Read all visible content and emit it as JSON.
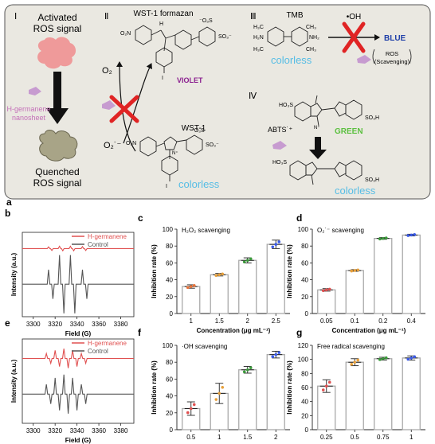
{
  "panel_a": {
    "letter": "a",
    "section1": {
      "roman": "Ⅰ",
      "line1": "Activated",
      "line2": "ROS signal",
      "label1": "H-germanene",
      "label2": "nanosheet",
      "out1": "Quenched",
      "out2": "ROS signal"
    },
    "section2": {
      "roman": "Ⅱ",
      "product": "WST-1 formazan",
      "violet": "VIOLET",
      "reagent": "WST-1",
      "colorless": "colorless",
      "o2": "O₂",
      "superoxide": "O₂˙⁻",
      "so3": "SO₃⁻",
      "oso3": "⁻O₃S",
      "no2": "O₂N",
      "iodo": "I",
      "n": "N",
      "nplus": "N⁺",
      "nh": "H"
    },
    "section3": {
      "roman": "Ⅲ",
      "tmb": "TMB",
      "oh": "•OH",
      "blue": "BLUE",
      "colorless": "colorless",
      "ros1": "ROS",
      "ros2": "(Scavenging)",
      "h3c": "H₃C",
      "ch3": "CH₃",
      "h2n": "H₂N",
      "nh2": "NH₂"
    },
    "section4": {
      "roman": "Ⅳ",
      "abts": "ABTS˙⁺",
      "green": "GREEN",
      "colorless": "colorless",
      "ho3s": "HO₃S",
      "so3h": "SO₃H",
      "n": "N",
      "s": "S",
      "nplus": "N⁺"
    }
  },
  "colors": {
    "panel_bg": "#eae8e1",
    "purple": "#c79bd0",
    "red": "#e02424",
    "violet": "#8b1f8f",
    "blue": "#1f3fa8",
    "green": "#5cc040",
    "colorless": "#56bde5",
    "hgerm": "#e05050",
    "control": "#555555"
  },
  "chart_data": [
    {
      "panel": "b",
      "type": "line",
      "xlabel": "Field (G)",
      "ylabel": "Intensity (a.u.)",
      "xticks": [
        "3300",
        "3320",
        "3340",
        "3360",
        "3380"
      ],
      "xlim": [
        3290,
        3392
      ],
      "series": [
        {
          "name": "H-germanene",
          "color": "#e05050",
          "offset": 0.8,
          "lines": [
            [
              3314,
              0.05
            ],
            [
              3317,
              -0.06
            ],
            [
              3324,
              0.07
            ],
            [
              3327,
              -0.07
            ],
            [
              3334,
              0.07
            ],
            [
              3337,
              -0.07
            ],
            [
              3345,
              0.06
            ],
            [
              3348,
              -0.06
            ]
          ]
        },
        {
          "name": "Control",
          "color": "#555555",
          "offset": -0.3,
          "lines": [
            [
              3314,
              0.45
            ],
            [
              3318,
              -0.45
            ],
            [
              3324,
              0.9
            ],
            [
              3328,
              -0.9
            ],
            [
              3334,
              0.9
            ],
            [
              3338,
              -0.9
            ],
            [
              3345,
              0.45
            ],
            [
              3349,
              -0.45
            ]
          ]
        }
      ],
      "legend": "top-right"
    },
    {
      "panel": "e",
      "type": "line",
      "xlabel": "Field (G)",
      "ylabel": "Intensity (a.u.)",
      "xticks": [
        "3300",
        "3320",
        "3340",
        "3360",
        "3380"
      ],
      "xlim": [
        3290,
        3392
      ],
      "series": [
        {
          "name": "H-germanene",
          "color": "#e05050",
          "offset": 0.7,
          "lines": [
            [
              3312,
              0.15
            ],
            [
              3316,
              -0.15
            ],
            [
              3320,
              0.25
            ],
            [
              3324,
              -0.25
            ],
            [
              3328,
              0.3
            ],
            [
              3332,
              -0.3
            ],
            [
              3336,
              0.25
            ],
            [
              3340,
              -0.25
            ],
            [
              3344,
              0.15
            ],
            [
              3348,
              -0.15
            ]
          ]
        },
        {
          "name": "Control",
          "color": "#555555",
          "offset": -0.4,
          "lines": [
            [
              3312,
              0.3
            ],
            [
              3316,
              -0.3
            ],
            [
              3320,
              0.5
            ],
            [
              3324,
              -0.5
            ],
            [
              3328,
              0.6
            ],
            [
              3332,
              -0.6
            ],
            [
              3336,
              0.5
            ],
            [
              3340,
              -0.5
            ],
            [
              3344,
              0.3
            ],
            [
              3348,
              -0.3
            ]
          ]
        }
      ],
      "legend": "top-right"
    },
    {
      "panel": "c",
      "type": "bar",
      "title": "H₂O₂ scavenging",
      "xlabel": "Concentration (μg mL⁻¹)",
      "ylabel": "Inhibition rate (%)",
      "categories": [
        "1",
        "1.5",
        "2",
        "2.5"
      ],
      "values": [
        32,
        46,
        63,
        82
      ],
      "errors": [
        2,
        1.5,
        3,
        5
      ],
      "ylim": [
        0,
        100
      ],
      "yticks": [
        0,
        20,
        40,
        60,
        80,
        100
      ],
      "dot_colors": [
        "#e8733a",
        "#e8a03a",
        "#3a9a3a",
        "#3a5ae8"
      ]
    },
    {
      "panel": "d",
      "type": "bar",
      "title": "O₂˙⁻ scavenging",
      "xlabel": "Concentration (μg mL⁻¹)",
      "ylabel": "Inhibition rate (%)",
      "categories": [
        "0.05",
        "0.1",
        "0.2",
        "0.4"
      ],
      "values": [
        28,
        51,
        89,
        93
      ],
      "errors": [
        1.5,
        1,
        1,
        1
      ],
      "ylim": [
        0,
        100
      ],
      "yticks": [
        0,
        20,
        40,
        60,
        80,
        100
      ],
      "dot_colors": [
        "#e05050",
        "#e8a03a",
        "#3a9a3a",
        "#3a5ae8"
      ]
    },
    {
      "panel": "f",
      "type": "bar",
      "title": "·OH scavenging",
      "xlabel": "Concentration (μg mL⁻¹)",
      "ylabel": "Inhibition rate (%)",
      "categories": [
        "0.5",
        "1",
        "1.5",
        "2"
      ],
      "values": [
        25,
        43,
        71,
        89
      ],
      "errors": [
        8,
        12,
        4,
        4
      ],
      "ylim": [
        0,
        100
      ],
      "yticks": [
        0,
        20,
        40,
        60,
        80,
        100
      ],
      "dot_colors": [
        "#e05050",
        "#e8a03a",
        "#3a9a3a",
        "#3a5ae8"
      ]
    },
    {
      "panel": "g",
      "type": "bar",
      "title": "Free radical scavenging",
      "xlabel": "Concentration (μg mL⁻¹)",
      "ylabel": "Inhibition rate (%)",
      "categories": [
        "0.25",
        "0.5",
        "0.75",
        "1"
      ],
      "values": [
        62,
        96,
        101,
        102
      ],
      "errors": [
        9,
        5,
        2,
        3
      ],
      "ylim": [
        0,
        120
      ],
      "yticks": [
        0,
        20,
        40,
        60,
        80,
        100,
        120
      ],
      "dot_colors": [
        "#e05050",
        "#e8a03a",
        "#3a9a3a",
        "#3a5ae8"
      ]
    }
  ]
}
